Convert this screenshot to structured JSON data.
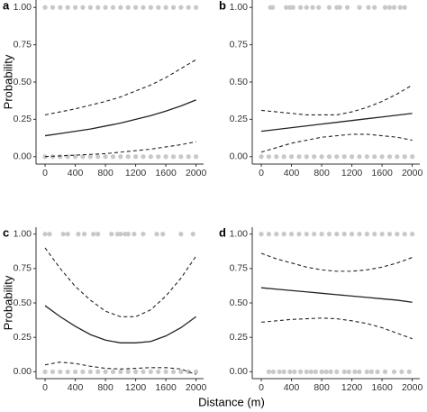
{
  "xlabel": "Distance (m)",
  "chart_data": [
    {
      "type": "line",
      "title": "a",
      "ylabel": "Probability",
      "xlim": [
        -120,
        2100
      ],
      "ylim": [
        -0.05,
        1.05
      ],
      "xticks": [
        0,
        400,
        800,
        1200,
        1600,
        2000
      ],
      "yticks": [
        {
          "value": 0,
          "label": "0.00"
        },
        {
          "value": 0.25,
          "label": "0.25"
        },
        {
          "value": 0.5,
          "label": "0.50"
        },
        {
          "value": 0.75,
          "label": "0.75"
        },
        {
          "value": 1,
          "label": "1.00"
        }
      ],
      "x": [
        0,
        200,
        400,
        600,
        800,
        1000,
        1200,
        1400,
        1600,
        1800,
        2000
      ],
      "series": [
        {
          "color": "#222222",
          "linestyle": "solid",
          "values": [
            0.14,
            0.155,
            0.17,
            0.185,
            0.205,
            0.225,
            0.25,
            0.275,
            0.305,
            0.34,
            0.38
          ]
        },
        {
          "color": "#222222",
          "linestyle": "dashed",
          "values": [
            0.28,
            0.3,
            0.32,
            0.345,
            0.37,
            0.4,
            0.44,
            0.48,
            0.53,
            0.59,
            0.65
          ]
        },
        {
          "color": "#222222",
          "linestyle": "dashed",
          "values": [
            0.0,
            0.005,
            0.01,
            0.015,
            0.02,
            0.03,
            0.04,
            0.05,
            0.065,
            0.08,
            0.1
          ]
        }
      ],
      "rug_color": "#c8c8c8",
      "rug": [
        {
          "y": 1,
          "x": [
            0,
            100,
            200,
            300,
            400,
            500,
            600,
            700,
            800,
            900,
            1000,
            1100,
            1200,
            1300,
            1400,
            1500,
            1600,
            1700,
            1800,
            1900,
            2000
          ]
        },
        {
          "y": 0,
          "x": [
            0,
            100,
            200,
            300,
            400,
            500,
            600,
            700,
            800,
            900,
            1000,
            1100,
            1200,
            1300,
            1400,
            1500,
            1600,
            1700,
            1800,
            1900,
            2000
          ]
        }
      ]
    },
    {
      "type": "line",
      "title": "b",
      "xlim": [
        -120,
        2100
      ],
      "ylim": [
        -0.05,
        1.05
      ],
      "xticks": [
        0,
        400,
        800,
        1200,
        1600,
        2000
      ],
      "yticks": [
        {
          "value": 0,
          "label": "0.00"
        },
        {
          "value": 0.25,
          "label": "0.25"
        },
        {
          "value": 0.5,
          "label": "0.50"
        },
        {
          "value": 0.75,
          "label": "0.75"
        },
        {
          "value": 1,
          "label": "1.00"
        }
      ],
      "x": [
        0,
        200,
        400,
        600,
        800,
        1000,
        1200,
        1400,
        1600,
        1800,
        2000
      ],
      "series": [
        {
          "color": "#222222",
          "linestyle": "solid",
          "values": [
            0.17,
            0.182,
            0.194,
            0.206,
            0.218,
            0.23,
            0.242,
            0.254,
            0.266,
            0.278,
            0.29
          ]
        },
        {
          "color": "#222222",
          "linestyle": "dashed",
          "values": [
            0.31,
            0.3,
            0.29,
            0.28,
            0.28,
            0.28,
            0.3,
            0.33,
            0.37,
            0.42,
            0.48
          ]
        },
        {
          "color": "#222222",
          "linestyle": "dashed",
          "values": [
            0.03,
            0.06,
            0.09,
            0.11,
            0.13,
            0.14,
            0.15,
            0.15,
            0.14,
            0.13,
            0.11
          ]
        }
      ],
      "rug_color": "#c8c8c8",
      "rug": [
        {
          "y": 1,
          "x": [
            120,
            150,
            330,
            380,
            420,
            520,
            600,
            680,
            760,
            900,
            1000,
            1040,
            1140,
            1300,
            1420,
            1500,
            1640,
            1700,
            1760,
            1840,
            1900
          ]
        },
        {
          "y": 0,
          "x": [
            0,
            100,
            200,
            300,
            400,
            500,
            600,
            700,
            800,
            900,
            1000,
            1100,
            1200,
            1300,
            1400,
            1500,
            1600,
            1700,
            1800,
            1900,
            2000
          ]
        }
      ]
    },
    {
      "type": "line",
      "title": "c",
      "ylabel": "Probability",
      "xlim": [
        -120,
        2100
      ],
      "ylim": [
        -0.05,
        1.05
      ],
      "xticks": [
        0,
        400,
        800,
        1200,
        1600,
        2000
      ],
      "yticks": [
        {
          "value": 0,
          "label": "0.00"
        },
        {
          "value": 0.25,
          "label": "0.25"
        },
        {
          "value": 0.5,
          "label": "0.50"
        },
        {
          "value": 0.75,
          "label": "0.75"
        },
        {
          "value": 1,
          "label": "1.00"
        }
      ],
      "x": [
        0,
        200,
        400,
        600,
        800,
        1000,
        1200,
        1400,
        1600,
        1800,
        2000
      ],
      "series": [
        {
          "color": "#222222",
          "linestyle": "solid",
          "values": [
            0.48,
            0.4,
            0.33,
            0.27,
            0.23,
            0.21,
            0.21,
            0.22,
            0.26,
            0.32,
            0.4
          ]
        },
        {
          "color": "#222222",
          "linestyle": "dashed",
          "values": [
            0.9,
            0.75,
            0.62,
            0.52,
            0.44,
            0.4,
            0.4,
            0.45,
            0.55,
            0.68,
            0.84
          ]
        },
        {
          "color": "#222222",
          "linestyle": "dashed",
          "values": [
            0.05,
            0.07,
            0.06,
            0.04,
            0.025,
            0.02,
            0.025,
            0.03,
            0.03,
            0.02,
            -0.02
          ]
        }
      ],
      "rug_color": "#c8c8c8",
      "rug": [
        {
          "y": 1,
          "x": [
            0,
            60,
            240,
            300,
            440,
            520,
            640,
            700,
            880,
            960,
            1000,
            1060,
            1100,
            1180,
            1300,
            1480,
            1560,
            1800,
            1960
          ]
        },
        {
          "y": 0,
          "x": [
            0,
            100,
            200,
            300,
            400,
            500,
            600,
            700,
            800,
            900,
            1000,
            1100,
            1200,
            1300,
            1400,
            1500,
            1600,
            1700,
            1800,
            1900,
            2000
          ]
        }
      ]
    },
    {
      "type": "line",
      "title": "d",
      "xlim": [
        -120,
        2100
      ],
      "ylim": [
        -0.05,
        1.05
      ],
      "xticks": [
        0,
        400,
        800,
        1200,
        1600,
        2000
      ],
      "yticks": [
        {
          "value": 0,
          "label": "0.00"
        },
        {
          "value": 0.25,
          "label": "0.25"
        },
        {
          "value": 0.5,
          "label": "0.50"
        },
        {
          "value": 0.75,
          "label": "0.75"
        },
        {
          "value": 1,
          "label": "1.00"
        }
      ],
      "x": [
        0,
        200,
        400,
        600,
        800,
        1000,
        1200,
        1400,
        1600,
        1800,
        2000
      ],
      "series": [
        {
          "color": "#222222",
          "linestyle": "solid",
          "values": [
            0.61,
            0.6,
            0.59,
            0.58,
            0.57,
            0.56,
            0.55,
            0.54,
            0.53,
            0.52,
            0.505
          ]
        },
        {
          "color": "#222222",
          "linestyle": "dashed",
          "values": [
            0.86,
            0.82,
            0.79,
            0.76,
            0.74,
            0.73,
            0.73,
            0.74,
            0.76,
            0.79,
            0.83
          ]
        },
        {
          "color": "#222222",
          "linestyle": "dashed",
          "values": [
            0.36,
            0.37,
            0.38,
            0.385,
            0.39,
            0.385,
            0.37,
            0.35,
            0.32,
            0.28,
            0.24
          ]
        }
      ],
      "rug_color": "#c8c8c8",
      "rug": [
        {
          "y": 1,
          "x": [
            0,
            100,
            200,
            300,
            400,
            500,
            600,
            700,
            800,
            900,
            1000,
            1100,
            1200,
            1300,
            1400,
            1500,
            1600,
            1700,
            1800,
            1900,
            2000
          ]
        },
        {
          "y": 0,
          "x": [
            100,
            160,
            240,
            300,
            380,
            440,
            520,
            600,
            660,
            720,
            800,
            860,
            920,
            1000,
            1100,
            1160,
            1240,
            1300,
            1400,
            1460,
            1540,
            1640,
            1760,
            1860,
            1960
          ]
        }
      ]
    }
  ]
}
